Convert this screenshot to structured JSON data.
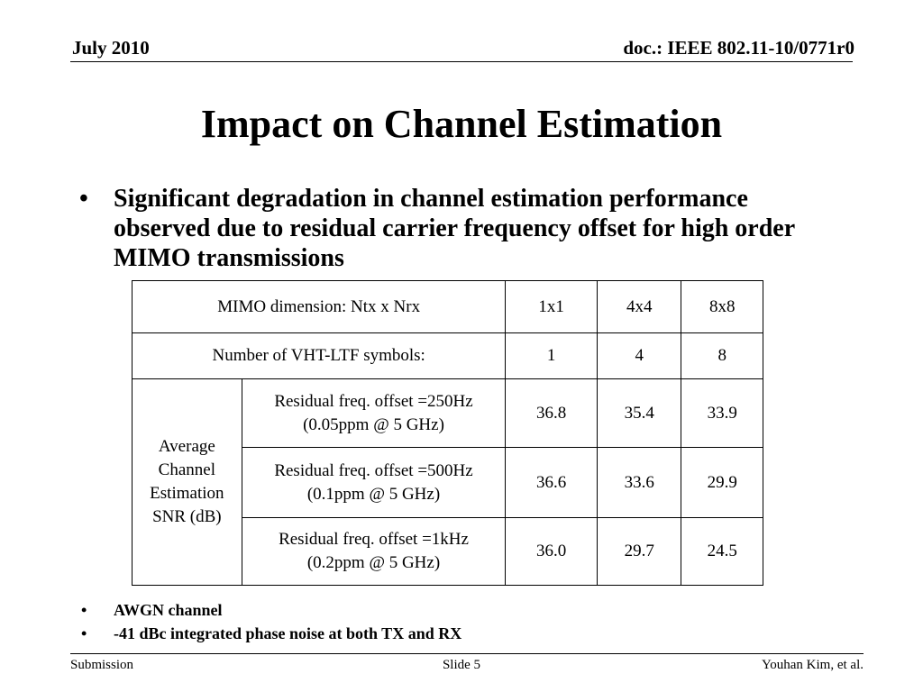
{
  "header": {
    "date": "July 2010",
    "doc_id": "doc.: IEEE 802.11-10/0771r0"
  },
  "title": "Impact on Channel Estimation",
  "main_bullet": {
    "marker": "•",
    "text": "Significant degradation in channel estimation performance observed due to residual carrier frequency offset for high order MIMO transmissions"
  },
  "table": {
    "header_row": {
      "label": "MIMO dimension: Ntx x Nrx",
      "values": [
        "1x1",
        "4x4",
        "8x8"
      ]
    },
    "symbols_row": {
      "label": "Number of VHT-LTF symbols:",
      "values": [
        "1",
        "4",
        "8"
      ]
    },
    "group_label": "Average Channel Estimation SNR (dB)",
    "rows": [
      {
        "line1": "Residual freq. offset =250Hz",
        "line2": "(0.05ppm @ 5 GHz)",
        "values": [
          "36.8",
          "35.4",
          "33.9"
        ]
      },
      {
        "line1": "Residual freq. offset =500Hz",
        "line2": "(0.1ppm @ 5 GHz)",
        "values": [
          "36.6",
          "33.6",
          "29.9"
        ]
      },
      {
        "line1": "Residual freq. offset =1kHz",
        "line2": "(0.2ppm @ 5 GHz)",
        "values": [
          "36.0",
          "29.7",
          "24.5"
        ]
      }
    ]
  },
  "notes": [
    {
      "marker": "•",
      "text": "AWGN channel"
    },
    {
      "marker": "•",
      "text": "-41 dBc integrated phase noise at both TX and RX"
    }
  ],
  "footer": {
    "left": "Submission",
    "center": "Slide 5",
    "right": "Youhan Kim, et al."
  }
}
